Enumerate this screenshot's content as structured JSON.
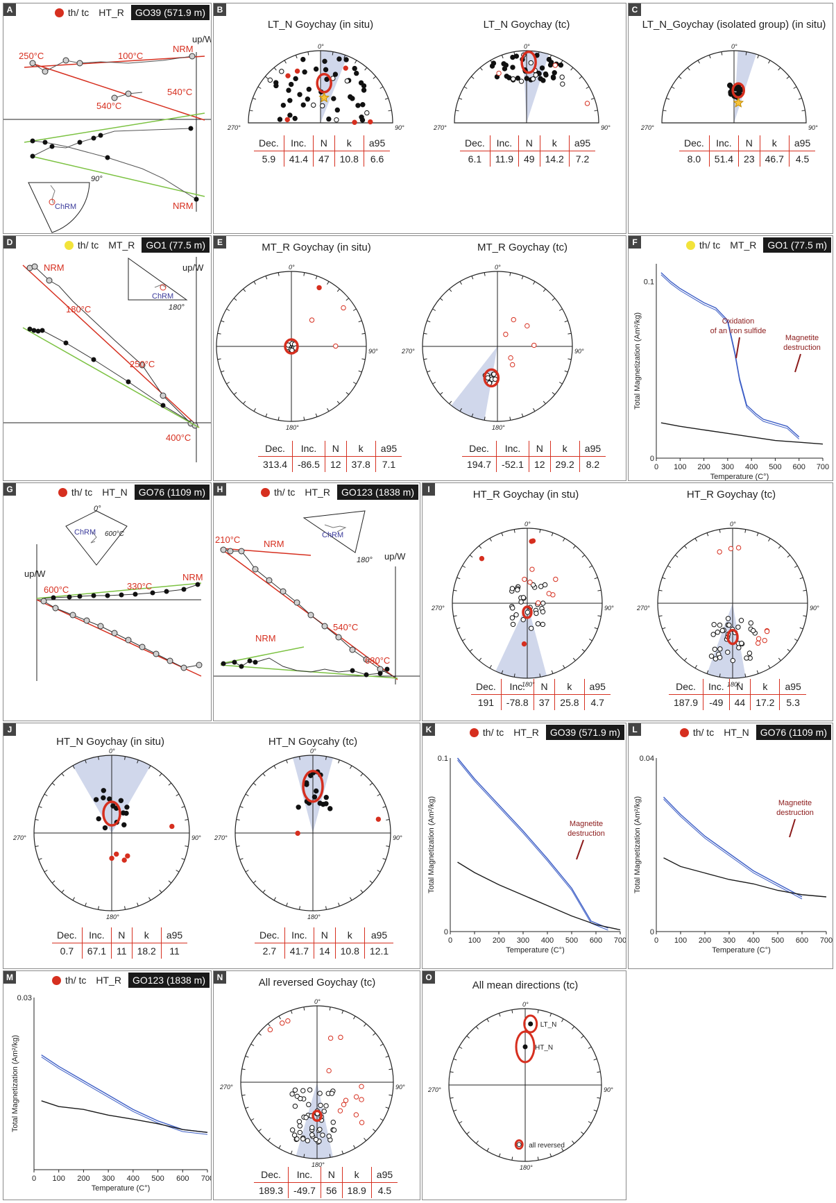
{
  "colors": {
    "red": "#d62f1f",
    "green": "#7cc242",
    "blue": "#3e5fc6",
    "purple": "#3b3b9b",
    "cone": "#c8d0e8",
    "dark": "#8b1a1a",
    "yellow": "#f2e33a"
  },
  "common": {
    "ticks_0": "0°",
    "ticks_90": "90°",
    "ticks_180": "180°",
    "ticks_270": "270°",
    "up_w": "up/W",
    "chrm": "ChRM",
    "nrm": "NRM",
    "th_tc": "th/ tc",
    "xlabel": "Temperature (C°)",
    "ylabel": "Total Magnetization (Am²/kg)",
    "col_dec": "Dec.",
    "col_inc": "Inc.",
    "col_n": "N",
    "col_k": "k",
    "col_a95": "a95"
  },
  "panels": {
    "A": {
      "label": "A",
      "group": "HT_R",
      "site": "GO39 (571.9 m)",
      "dot_color": "#d62f1f",
      "temps": [
        "250°C",
        "100°C",
        "540°C",
        "540°C"
      ],
      "inset_tick": "90°"
    },
    "B": {
      "label": "B",
      "plots": [
        {
          "title": "LT_N Goychay (in situ)",
          "stats": {
            "dec": "5.9",
            "inc": "41.4",
            "n": "47",
            "k": "10.8",
            "a95": "6.6"
          }
        },
        {
          "title": "LT_N Goychay (tc)",
          "stats": {
            "dec": "6.1",
            "inc": "11.9",
            "n": "49",
            "k": "14.2",
            "a95": "7.2"
          }
        }
      ]
    },
    "C": {
      "label": "C",
      "title": "LT_N_Goychay (isolated group) (in situ)",
      "stats": {
        "dec": "8.0",
        "inc": "51.4",
        "n": "23",
        "k": "46.7",
        "a95": "4.5"
      }
    },
    "D": {
      "label": "D",
      "group": "MT_R",
      "site": "GO1 (77.5 m)",
      "dot_color": "#f2e33a",
      "temps": [
        "180°C",
        "250°C",
        "400°C"
      ],
      "inset_tick": "180°"
    },
    "E": {
      "label": "E",
      "plots": [
        {
          "title": "MT_R  Goychay (in situ)",
          "stats": {
            "dec": "313.4",
            "inc": "-86.5",
            "n": "12",
            "k": "37.8",
            "a95": "7.1"
          }
        },
        {
          "title": "MT_R Goychay (tc)",
          "stats": {
            "dec": "194.7",
            "inc": "-52.1",
            "n": "12",
            "k": "29.2",
            "a95": "8.2"
          }
        }
      ]
    },
    "F": {
      "label": "F",
      "group": "MT_R",
      "site": "GO1 (77.5 m)",
      "dot_color": "#f2e33a",
      "ymax": "0.1",
      "annot1": "Oxidation",
      "annot2": "of an iron sulfide",
      "annot3": "Magnetite",
      "annot4": "destruction"
    },
    "G": {
      "label": "G",
      "group": "HT_N",
      "site": "GO76 (1109 m)",
      "dot_color": "#d62f1f",
      "temps": [
        "600°C",
        "330°C"
      ],
      "inset_temp": "600°C"
    },
    "H": {
      "label": "H",
      "group": "HT_R",
      "site": "GO123 (1838 m)",
      "dot_color": "#d62f1f",
      "temps": [
        "210°C",
        "540°C",
        "680°C"
      ],
      "inset_tick": "180°"
    },
    "I": {
      "label": "I",
      "plots": [
        {
          "title": "HT_R Goychay (in stu)",
          "stats": {
            "dec": "191",
            "inc": "-78.8",
            "n": "37",
            "k": "25.8",
            "a95": "4.7"
          }
        },
        {
          "title": "HT_R Goychay (tc)",
          "stats": {
            "dec": "187.9",
            "inc": "-49",
            "n": "44",
            "k": "17.2",
            "a95": "5.3"
          }
        }
      ]
    },
    "J": {
      "label": "J",
      "plots": [
        {
          "title": "HT_N Goychay (in situ)",
          "stats": {
            "dec": "0.7",
            "inc": "67.1",
            "n": "11",
            "k": "18.2",
            "a95": "11"
          }
        },
        {
          "title": "HT_N Goycahy (tc)",
          "stats": {
            "dec": "2.7",
            "inc": "41.7",
            "n": "14",
            "k": "10.8",
            "a95": "12.1"
          }
        }
      ]
    },
    "K": {
      "label": "K",
      "group": "HT_R",
      "site": "GO39 (571.9 m)",
      "dot_color": "#d62f1f",
      "ymax": "0.1",
      "annot3": "Magnetite",
      "annot4": "destruction"
    },
    "L": {
      "label": "L",
      "group": "HT_N",
      "site": "GO76 (1109 m)",
      "dot_color": "#d62f1f",
      "ymax": "0.04",
      "annot3": "Magnetite",
      "annot4": "destruction"
    },
    "M": {
      "label": "M",
      "group": "HT_R",
      "site": "GO123 (1838 m)",
      "dot_color": "#d62f1f",
      "ymax": "0.03"
    },
    "N": {
      "label": "N",
      "title": "All reversed Goychay (tc)",
      "stats": {
        "dec": "189.3",
        "inc": "-49.7",
        "n": "56",
        "k": "18.9",
        "a95": "4.5"
      }
    },
    "O": {
      "label": "O",
      "title": "All mean directions (tc)",
      "labels": [
        "LT_N",
        "HT_N",
        "all reversed"
      ]
    }
  },
  "chart_data": [
    {
      "type": "line",
      "panel": "F",
      "title": "",
      "xlabel": "Temperature (C°)",
      "ylabel": "Total Magnetization (Am²/kg)",
      "xlim": [
        0,
        700
      ],
      "ylim": [
        0,
        0.11
      ],
      "x_ticks": [
        0,
        100,
        200,
        300,
        400,
        500,
        600,
        700
      ],
      "y_ticks": [
        "0",
        "0.1"
      ],
      "series": [
        {
          "color": "#3e5fc6",
          "x": [
            20,
            60,
            100,
            150,
            200,
            250,
            300,
            330,
            350,
            380,
            420,
            450,
            500,
            550,
            600
          ],
          "y": [
            0.105,
            0.1,
            0.096,
            0.092,
            0.088,
            0.085,
            0.078,
            0.06,
            0.045,
            0.03,
            0.025,
            0.022,
            0.02,
            0.018,
            0.012
          ]
        },
        {
          "color": "#1a1a1a",
          "x": [
            20,
            100,
            200,
            300,
            400,
            500,
            600,
            700
          ],
          "y": [
            0.02,
            0.018,
            0.016,
            0.014,
            0.012,
            0.01,
            0.009,
            0.008
          ]
        }
      ]
    },
    {
      "type": "line",
      "panel": "K",
      "title": "",
      "xlabel": "Temperature (C°)",
      "ylabel": "Total Magnetization (Am²/kg)",
      "xlim": [
        0,
        700
      ],
      "ylim": [
        0,
        0.1
      ],
      "x_ticks": [
        0,
        100,
        200,
        300,
        400,
        500,
        600,
        700
      ],
      "y_ticks": [
        "0",
        "0.1"
      ],
      "series": [
        {
          "color": "#3e5fc6",
          "x": [
            30,
            100,
            200,
            300,
            400,
            500,
            580,
            650
          ],
          "y": [
            0.1,
            0.088,
            0.073,
            0.058,
            0.042,
            0.025,
            0.006,
            0.002
          ]
        },
        {
          "color": "#1a1a1a",
          "x": [
            30,
            100,
            200,
            300,
            400,
            500,
            600,
            700
          ],
          "y": [
            0.04,
            0.034,
            0.027,
            0.021,
            0.015,
            0.009,
            0.004,
            0.001
          ]
        }
      ]
    },
    {
      "type": "line",
      "panel": "L",
      "title": "",
      "xlabel": "Temperature (C°)",
      "ylabel": "Total Magnetization (Am²/kg)",
      "xlim": [
        0,
        700
      ],
      "ylim": [
        0,
        0.04
      ],
      "x_ticks": [
        0,
        100,
        200,
        300,
        400,
        500,
        600,
        700
      ],
      "y_ticks": [
        "0",
        "0.04"
      ],
      "series": [
        {
          "color": "#3e5fc6",
          "x": [
            30,
            100,
            200,
            300,
            400,
            500,
            600
          ],
          "y": [
            0.031,
            0.027,
            0.022,
            0.018,
            0.014,
            0.011,
            0.008
          ]
        },
        {
          "color": "#1a1a1a",
          "x": [
            30,
            100,
            200,
            300,
            400,
            500,
            600,
            700
          ],
          "y": [
            0.017,
            0.015,
            0.0135,
            0.012,
            0.011,
            0.0095,
            0.0085,
            0.008
          ]
        }
      ]
    },
    {
      "type": "line",
      "panel": "M",
      "title": "",
      "xlabel": "Temperature (C°)",
      "ylabel": "Total Magnetization (Am²/kg)",
      "xlim": [
        0,
        700
      ],
      "ylim": [
        0,
        0.03
      ],
      "x_ticks": [
        0,
        100,
        200,
        300,
        400,
        500,
        600,
        700
      ],
      "y_ticks": [
        "0.03"
      ],
      "series": [
        {
          "color": "#3e5fc6",
          "x": [
            30,
            100,
            200,
            300,
            400,
            500,
            600,
            700
          ],
          "y": [
            0.02,
            0.018,
            0.0155,
            0.013,
            0.0105,
            0.0085,
            0.007,
            0.0065
          ]
        },
        {
          "color": "#1a1a1a",
          "x": [
            30,
            100,
            200,
            300,
            400,
            500,
            600,
            700
          ],
          "y": [
            0.012,
            0.011,
            0.0105,
            0.0095,
            0.0088,
            0.008,
            0.007,
            0.0065
          ]
        }
      ]
    }
  ]
}
